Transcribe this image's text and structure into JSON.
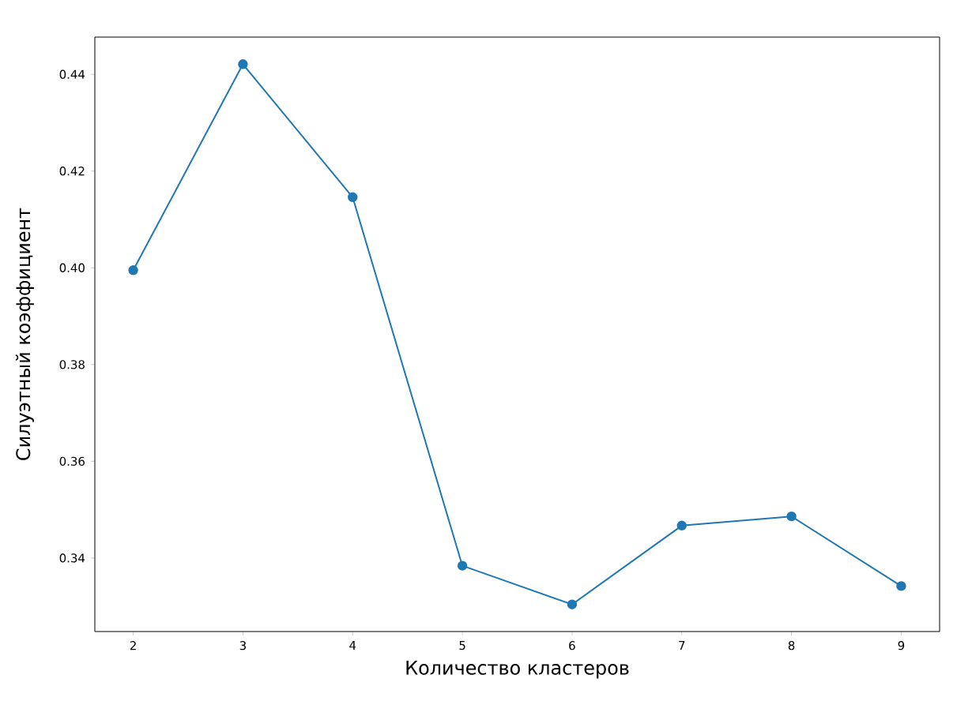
{
  "chart_data": {
    "type": "line",
    "xlabel": "Количество кластеров",
    "ylabel": "Силуэтный коэффициент",
    "x": [
      2,
      3,
      4,
      5,
      6,
      7,
      8,
      9
    ],
    "series": [
      {
        "color": "#1f77b4",
        "values": [
          0.3995,
          0.4421,
          0.4146,
          0.3384,
          0.3304,
          0.3467,
          0.3486,
          0.3342
        ]
      }
    ],
    "xlim": [
      1.65,
      9.35
    ],
    "ylim": [
      0.3248,
      0.4477
    ],
    "xticks": [
      2,
      3,
      4,
      5,
      6,
      7,
      8,
      9
    ],
    "yticks": [
      0.34,
      0.36,
      0.38,
      {
        "value": 0.4,
        "label": "0.40"
      },
      0.42,
      0.44
    ],
    "marker": "circle",
    "grid": false
  }
}
